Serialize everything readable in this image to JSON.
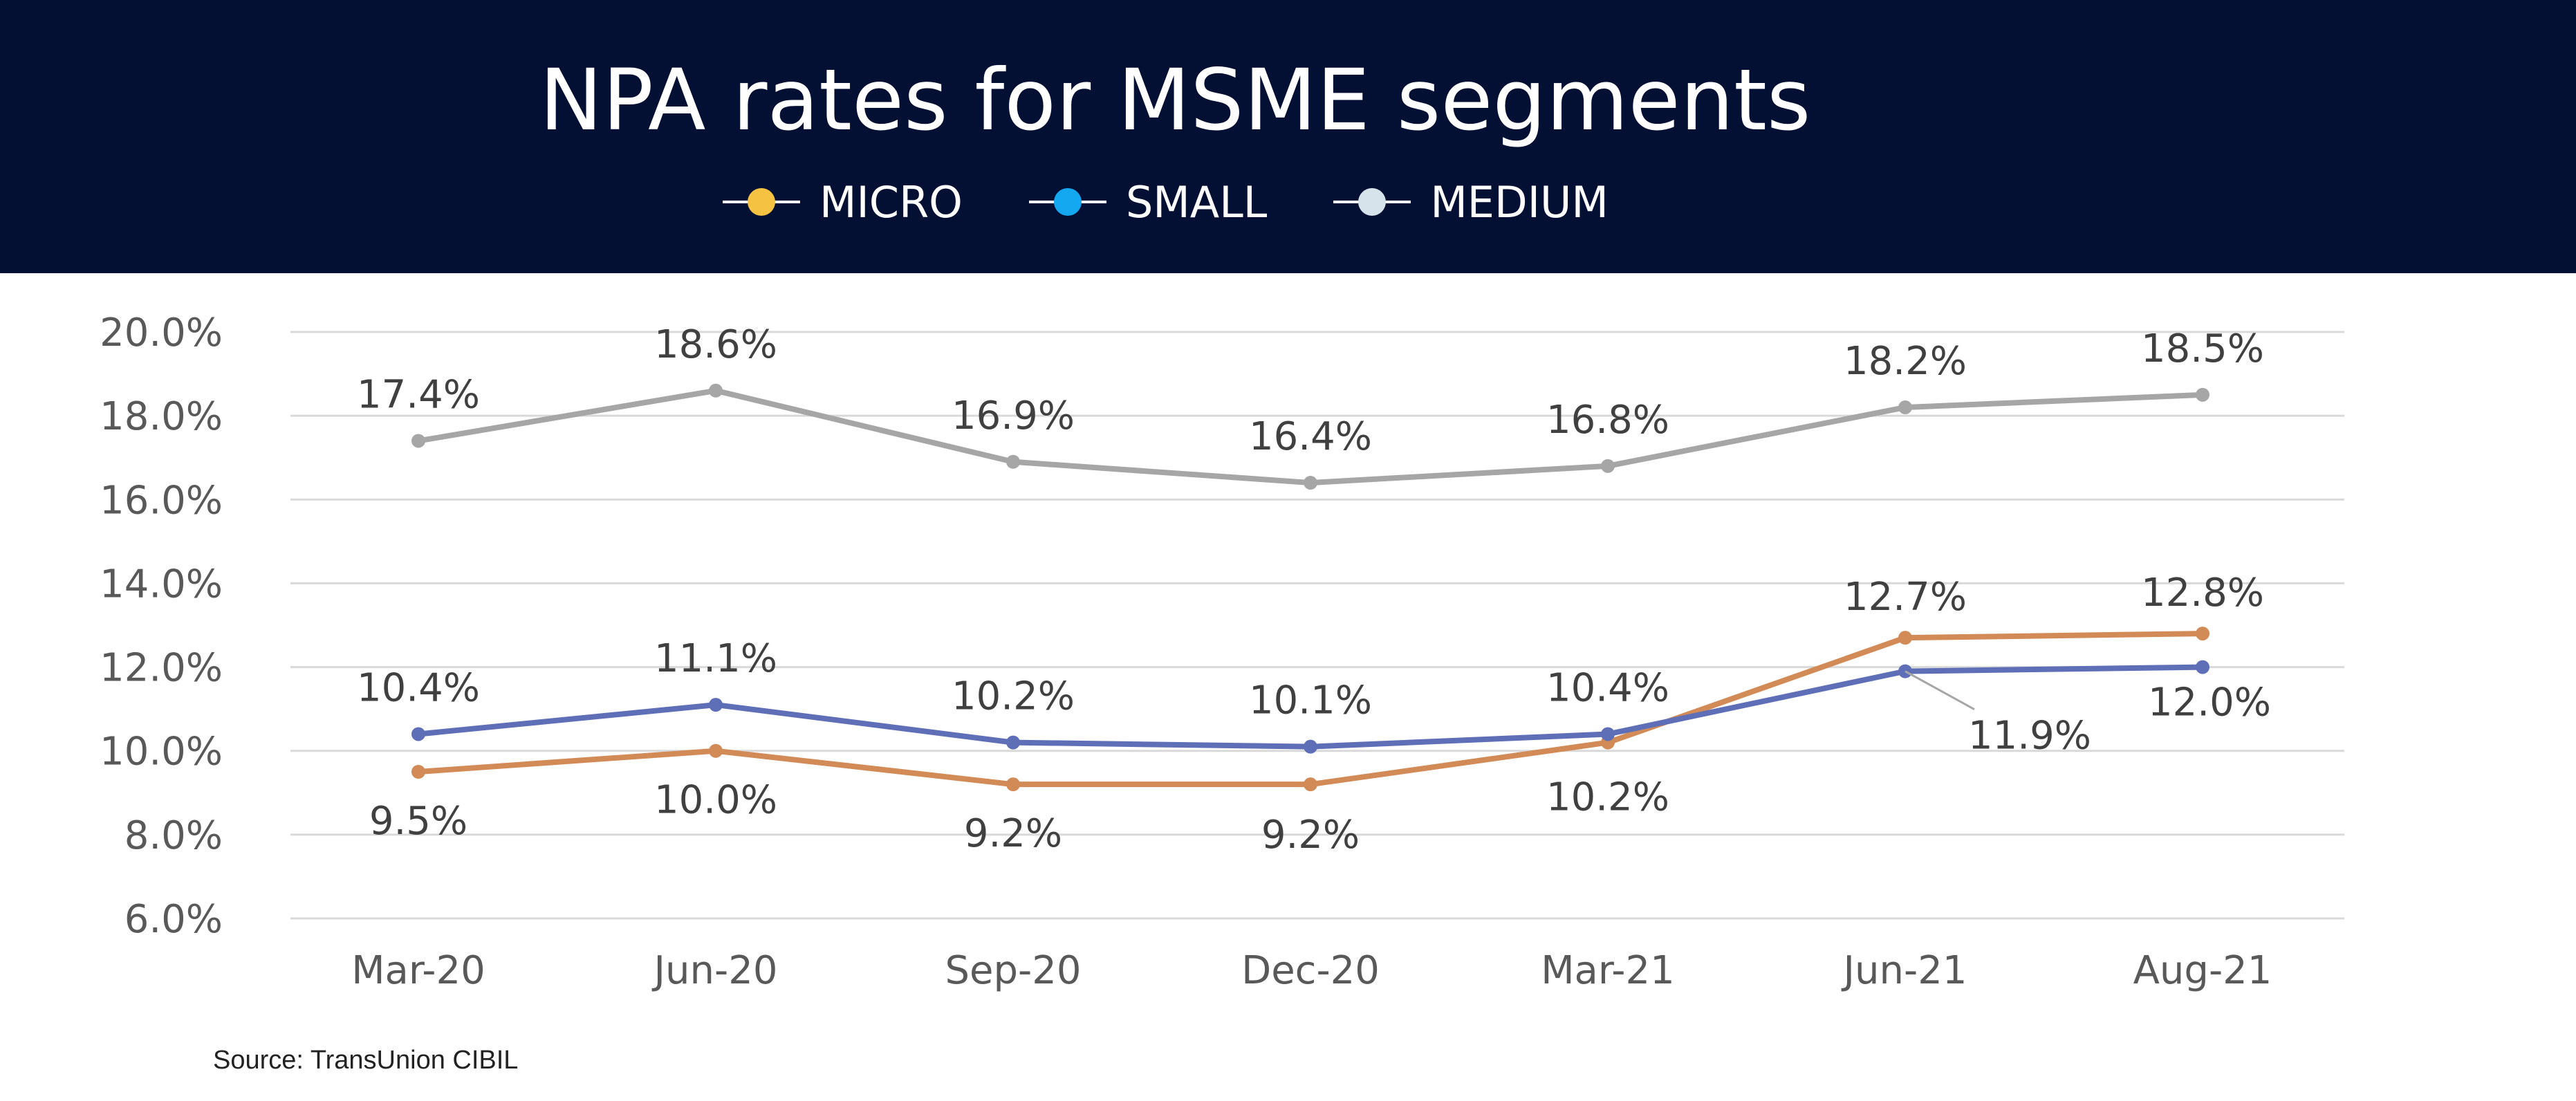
{
  "header": {
    "title": "NPA rates for MSME segments"
  },
  "legend": [
    {
      "label": "MICRO",
      "dot_color": "#F5C242"
    },
    {
      "label": "SMALL",
      "dot_color": "#13A8F0"
    },
    {
      "label": "MEDIUM",
      "dot_color": "#D7E3EA"
    }
  ],
  "chart_data": {
    "type": "line",
    "title": "NPA rates for MSME segments",
    "xlabel": "",
    "ylabel": "",
    "categories": [
      "Mar-20",
      "Jun-20",
      "Sep-20",
      "Dec-20",
      "Mar-21",
      "Jun-21",
      "Aug-21"
    ],
    "y_ticks": [
      "6.0%",
      "8.0%",
      "10.0%",
      "12.0%",
      "14.0%",
      "16.0%",
      "18.0%",
      "20.0%"
    ],
    "ylim": [
      6,
      20
    ],
    "grid": true,
    "legend_position": "top",
    "series": [
      {
        "name": "MICRO",
        "color": "#D28B57",
        "values": [
          9.5,
          10.0,
          9.2,
          9.2,
          10.2,
          12.7,
          12.8
        ],
        "labels": [
          "9.5%",
          "10.0%",
          "9.2%",
          "9.2%",
          "10.2%",
          "12.7%",
          "12.8%"
        ]
      },
      {
        "name": "SMALL",
        "color": "#5E6FB7",
        "values": [
          10.4,
          11.1,
          10.2,
          10.1,
          10.4,
          11.9,
          12.0
        ],
        "labels": [
          "10.4%",
          "11.1%",
          "10.2%",
          "10.1%",
          "10.4%",
          "11.9%",
          "12.0%"
        ]
      },
      {
        "name": "MEDIUM",
        "color": "#A6A6A6",
        "values": [
          17.4,
          18.6,
          16.9,
          16.4,
          16.8,
          18.2,
          18.5
        ],
        "labels": [
          "17.4%",
          "18.6%",
          "16.9%",
          "16.4%",
          "16.8%",
          "18.2%",
          "18.5%"
        ]
      }
    ]
  },
  "footer": {
    "source": "Source: TransUnion CIBIL"
  }
}
